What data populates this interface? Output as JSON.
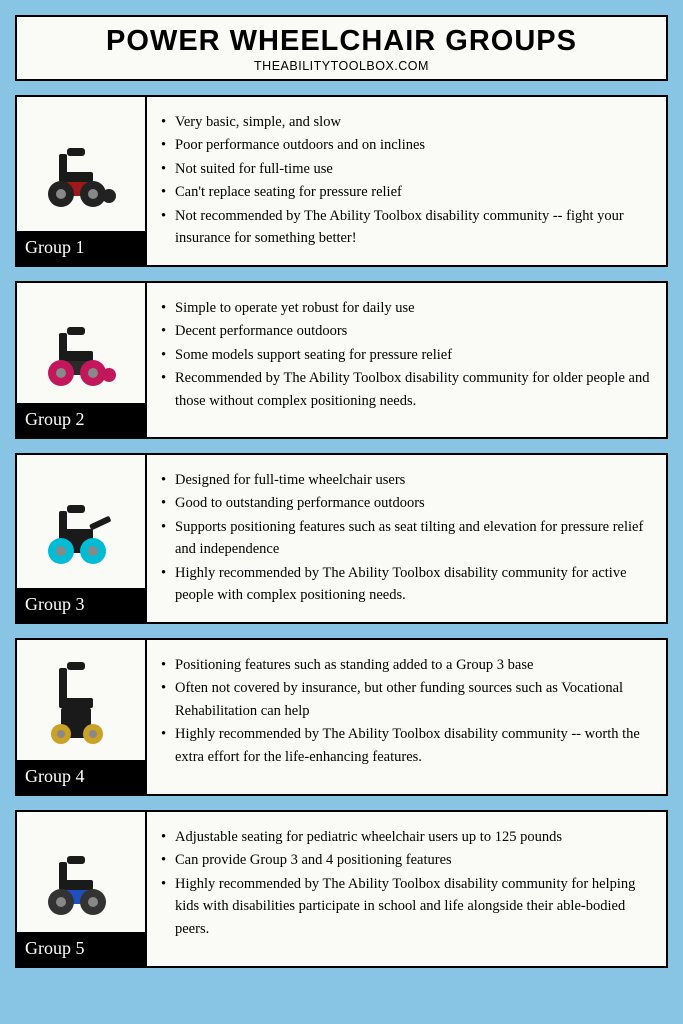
{
  "header": {
    "title": "POWER WHEELCHAIR GROUPS",
    "subtitle": "THEABILITYTOOLBOX.COM"
  },
  "colors": {
    "page_bg": "#88c5e5",
    "card_bg": "#fafaf7",
    "border": "#000000",
    "label_bg": "#000000",
    "label_text": "#ffffff",
    "text": "#000000"
  },
  "groups": [
    {
      "label": "Group 1",
      "wheelchair_colors": {
        "body": "#a01818",
        "seat": "#1a1a1a",
        "wheel": "#222"
      },
      "bullets": [
        "Very basic, simple, and slow",
        "Poor performance outdoors and on inclines",
        "Not suited for full-time use",
        "Can't replace seating for pressure relief",
        "Not recommended by The Ability Toolbox disability community -- fight your insurance for something better!"
      ]
    },
    {
      "label": "Group 2",
      "wheelchair_colors": {
        "body": "#2a2a2a",
        "seat": "#1a1a1a",
        "wheel": "#c2185b"
      },
      "bullets": [
        "Simple to operate yet robust for daily use",
        "Decent performance outdoors",
        "Some models support seating for pressure relief",
        "Recommended by The Ability Toolbox disability community for older people and those without complex positioning needs."
      ]
    },
    {
      "label": "Group 3",
      "wheelchair_colors": {
        "body": "#1a1a1a",
        "seat": "#1a1a1a",
        "wheel": "#00bcd4"
      },
      "bullets": [
        "Designed for full-time wheelchair users",
        "Good to outstanding performance outdoors",
        "Supports positioning features such as seat tilting and elevation for pressure relief and independence",
        "Highly recommended by The Ability Toolbox disability community for active people with complex positioning needs."
      ]
    },
    {
      "label": "Group 4",
      "wheelchair_colors": {
        "body": "#1a1a1a",
        "seat": "#1a1a1a",
        "wheel": "#c9a227"
      },
      "bullets": [
        "Positioning features such as standing added to a Group 3 base",
        "Often not covered by insurance, but other funding sources such as Vocational Rehabilitation can help",
        "Highly recommended by The Ability Toolbox disability community -- worth the extra effort for the life-enhancing features."
      ]
    },
    {
      "label": "Group 5",
      "wheelchair_colors": {
        "body": "#1e4fbf",
        "seat": "#1a1a1a",
        "wheel": "#333"
      },
      "bullets": [
        "Adjustable seating for pediatric wheelchair users up to 125 pounds",
        "Can provide Group 3 and 4 positioning features",
        "Highly recommended by The Ability Toolbox disability community for helping kids with disabilities participate in school and life alongside their able-bodied peers."
      ]
    }
  ]
}
